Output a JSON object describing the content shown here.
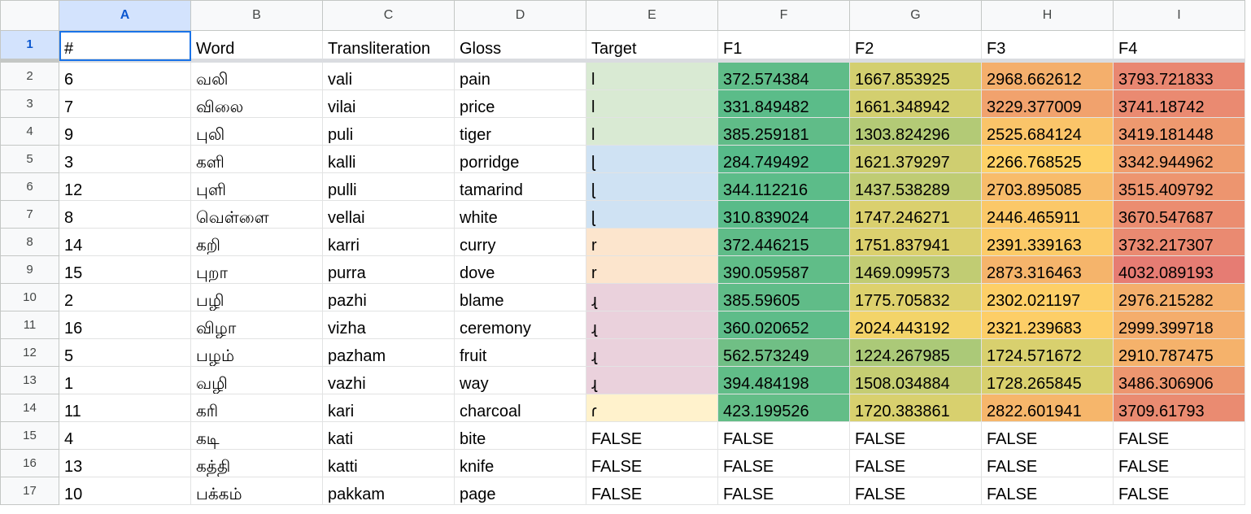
{
  "columns": [
    "A",
    "B",
    "C",
    "D",
    "E",
    "F",
    "G",
    "H",
    "I"
  ],
  "active_column": "A",
  "header_row": {
    "row_number": "1",
    "cells": [
      "#",
      "Word",
      "Transliteration",
      "Gloss",
      "Target",
      "F1",
      "F2",
      "F3",
      "F4"
    ]
  },
  "rows": [
    {
      "n": "2",
      "cells": [
        "6",
        "வலி",
        "vali",
        "pain",
        "l",
        "372.574384",
        "1667.853925",
        "2968.662612",
        "3793.721833"
      ]
    },
    {
      "n": "3",
      "cells": [
        "7",
        "விலை",
        "vilai",
        "price",
        "l",
        "331.849482",
        "1661.348942",
        "3229.377009",
        "3741.18742"
      ]
    },
    {
      "n": "4",
      "cells": [
        "9",
        "புலி",
        "puli",
        "tiger",
        "l",
        "385.259181",
        "1303.824296",
        "2525.684124",
        "3419.181448"
      ]
    },
    {
      "n": "5",
      "cells": [
        "3",
        "களி",
        "kalli",
        "porridge",
        "ɭ",
        "284.749492",
        "1621.379297",
        "2266.768525",
        "3342.944962"
      ]
    },
    {
      "n": "6",
      "cells": [
        "12",
        "புளி",
        "pulli",
        "tamarind",
        "ɭ",
        "344.112216",
        "1437.538289",
        "2703.895085",
        "3515.409792"
      ]
    },
    {
      "n": "7",
      "cells": [
        "8",
        "வெள்ளை",
        "vellai",
        "white",
        "ɭ",
        "310.839024",
        "1747.246271",
        "2446.465911",
        "3670.547687"
      ]
    },
    {
      "n": "8",
      "cells": [
        "14",
        "கறி",
        "karri",
        "curry",
        "r",
        "372.446215",
        "1751.837941",
        "2391.339163",
        "3732.217307"
      ]
    },
    {
      "n": "9",
      "cells": [
        "15",
        "புறா",
        "purra",
        "dove",
        "r",
        "390.059587",
        "1469.099573",
        "2873.316463",
        "4032.089193"
      ]
    },
    {
      "n": "10",
      "cells": [
        "2",
        "பழி",
        "pazhi",
        "blame",
        "ɻ",
        "385.59605",
        "1775.705832",
        "2302.021197",
        "2976.215282"
      ]
    },
    {
      "n": "11",
      "cells": [
        "16",
        "விழா",
        "vizha",
        "ceremony",
        "ɻ",
        "360.020652",
        "2024.443192",
        "2321.239683",
        "2999.399718"
      ]
    },
    {
      "n": "12",
      "cells": [
        "5",
        "பழம்",
        "pazham",
        "fruit",
        "ɻ",
        "562.573249",
        "1224.267985",
        "1724.571672",
        "2910.787475"
      ]
    },
    {
      "n": "13",
      "cells": [
        "1",
        "வழி",
        "vazhi",
        "way",
        "ɻ",
        "394.484198",
        "1508.034884",
        "1728.265845",
        "3486.306906"
      ]
    },
    {
      "n": "14",
      "cells": [
        "11",
        "கரி",
        "kari",
        "charcoal",
        "ɾ",
        "423.199526",
        "1720.383861",
        "2822.601941",
        "3709.61793"
      ]
    },
    {
      "n": "15",
      "cells": [
        "4",
        "கடி",
        "kati",
        "bite",
        "FALSE",
        "FALSE",
        "FALSE",
        "FALSE",
        "FALSE"
      ]
    },
    {
      "n": "16",
      "cells": [
        "13",
        "கத்தி",
        "katti",
        "knife",
        "FALSE",
        "FALSE",
        "FALSE",
        "FALSE",
        "FALSE"
      ]
    },
    {
      "n": "17",
      "cells": [
        "10",
        "பக்கம்",
        "pakkam",
        "page",
        "FALSE",
        "FALSE",
        "FALSE",
        "FALSE",
        "FALSE"
      ]
    }
  ],
  "target_fills": {
    "l": "#d9ead3",
    "ɭ": "#cfe2f3",
    "r": "#fce5cd",
    "ɻ": "#ead1dc",
    "ɾ": "#fff2cc"
  },
  "heat_scale": {
    "min_color": "#57bb8a",
    "mid_color": "#ffd666",
    "max_color": "#e67c73",
    "min": 284.749492,
    "mid": 2154.419343,
    "max": 4032.089193
  },
  "theme": {
    "selection_color": "#1a73e8",
    "active_header_fill": "#d3e3fd",
    "active_header_text": "#0b57d0",
    "header_fill": "#f8f9fa",
    "gridline": "#e2e3e3"
  }
}
